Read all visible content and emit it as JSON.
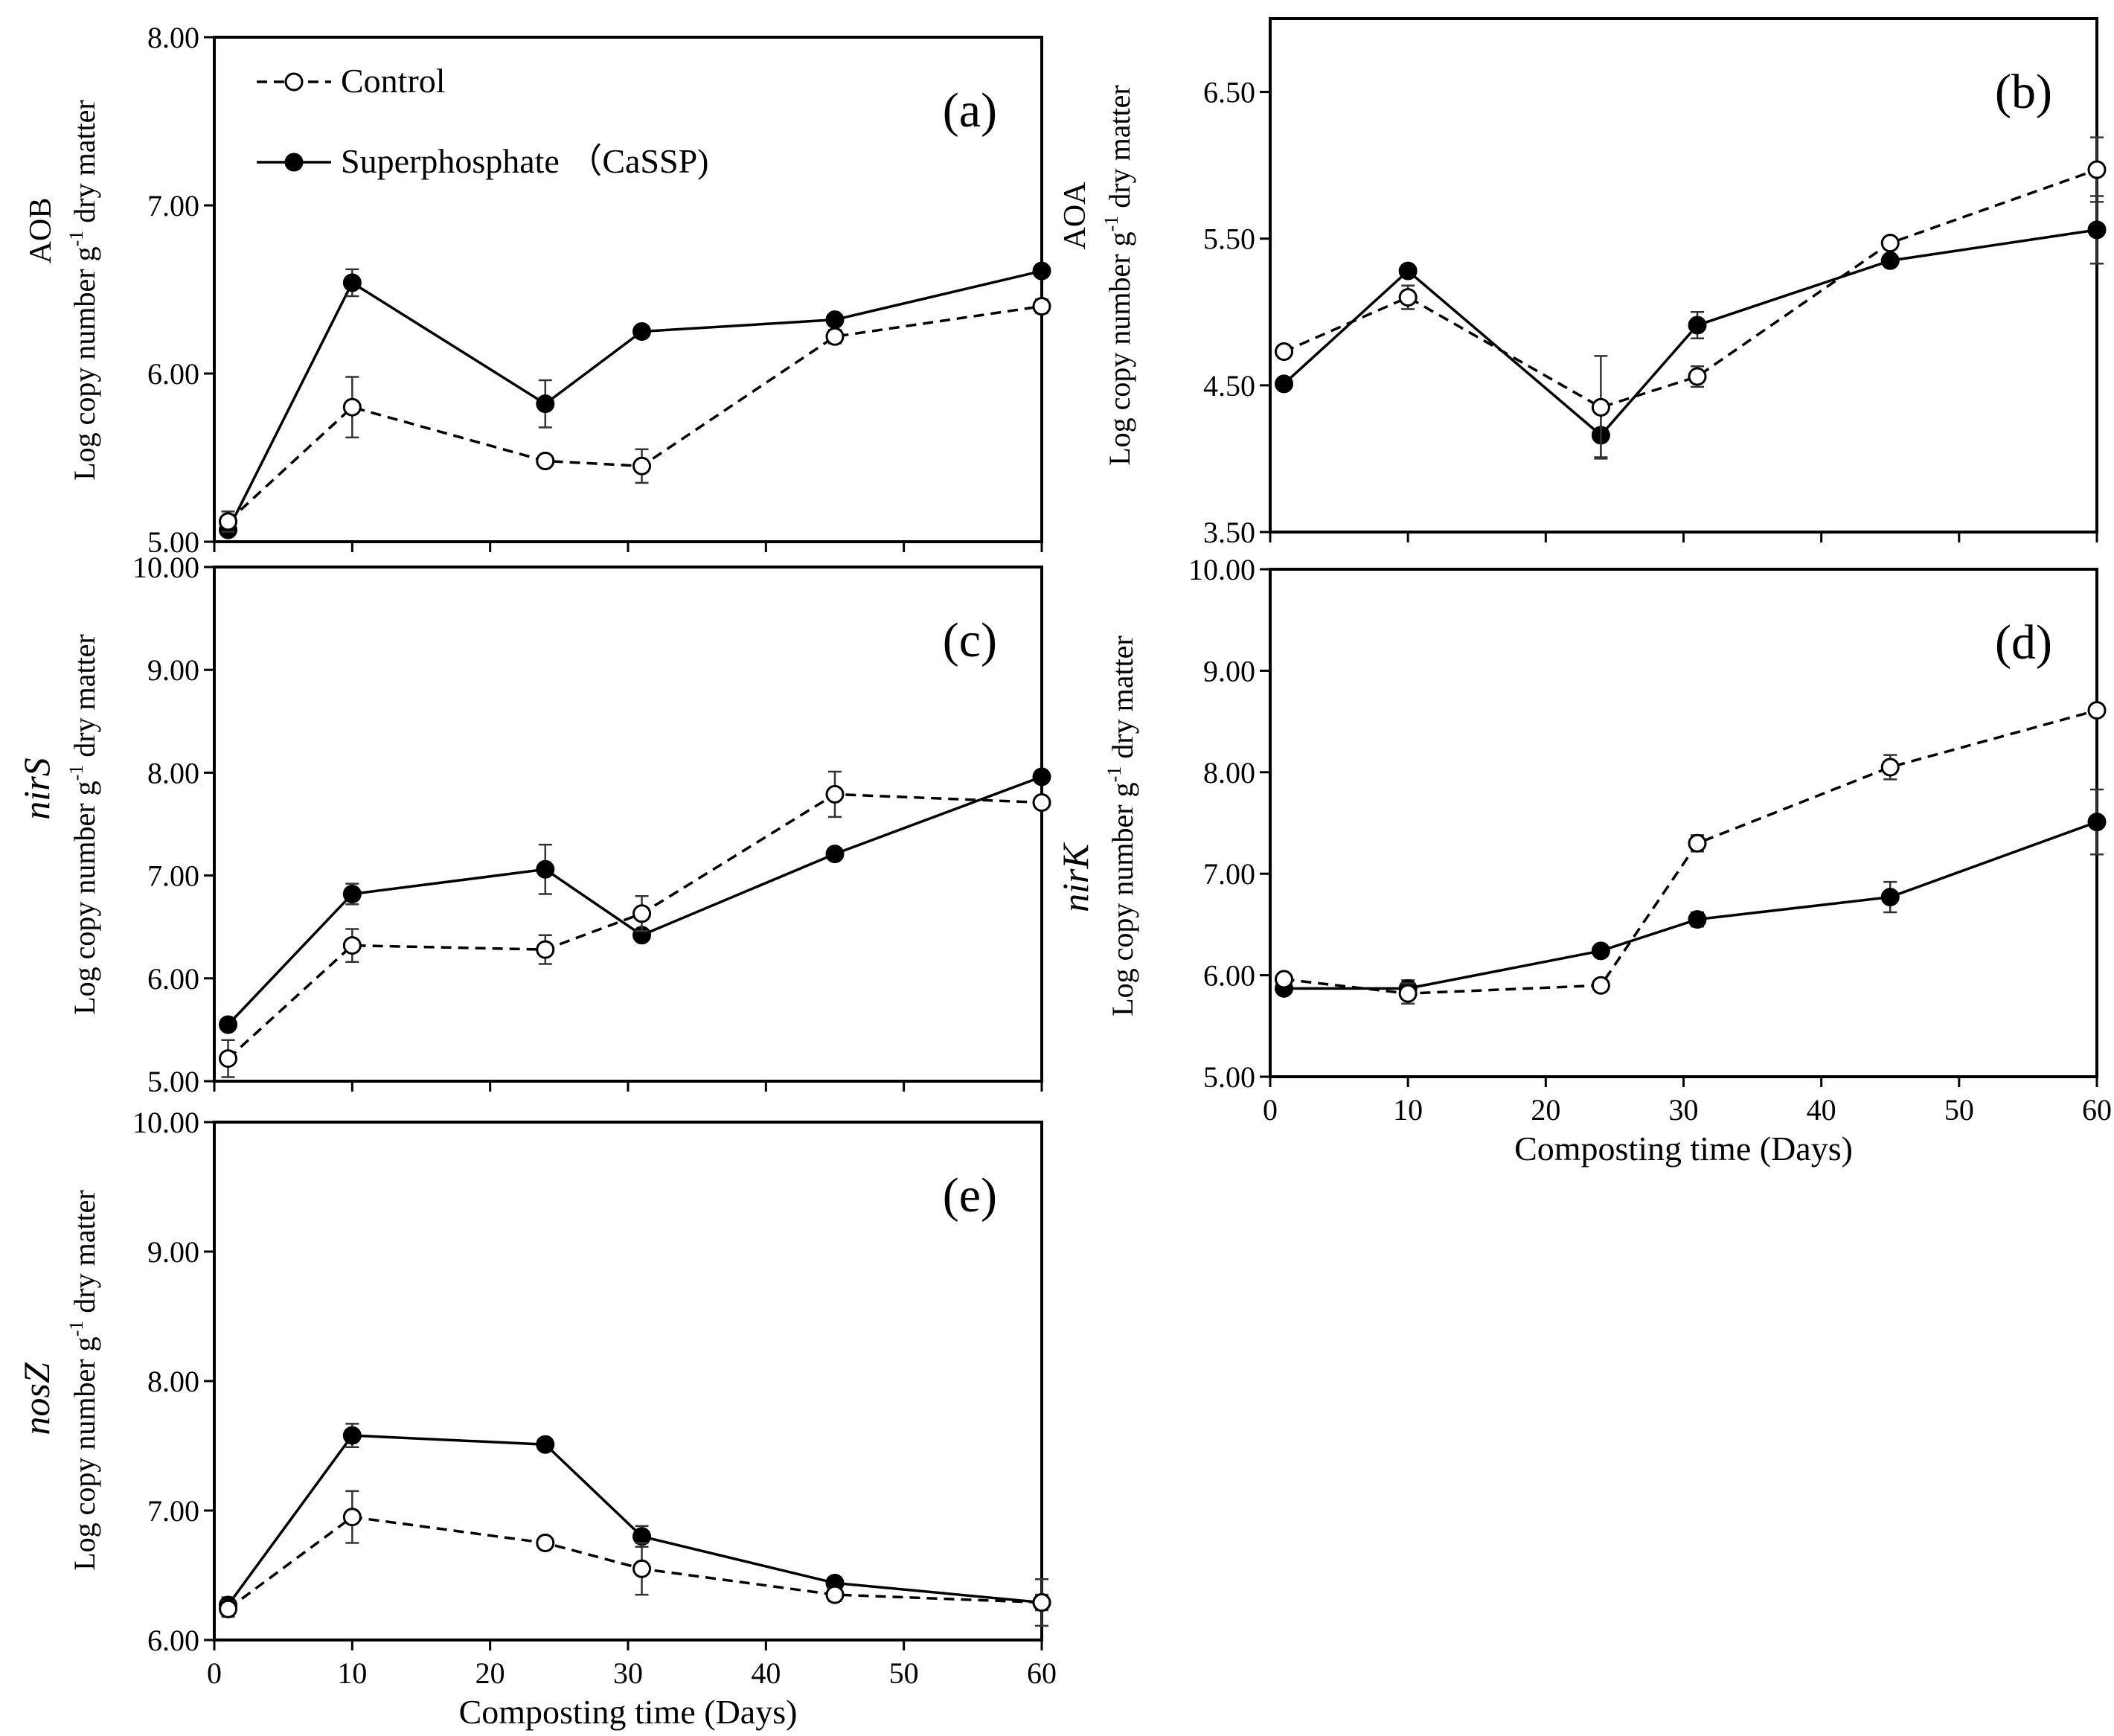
{
  "chart_data": [
    {
      "panel": "(a)",
      "type": "line",
      "ylabel_gene": "AOB",
      "ylabel_italic": false,
      "ylabel_main": "Log copy number g",
      "ylabel_sup": "-1",
      "ylabel_end": " dry matter",
      "xlabel": "",
      "xlim": [
        0,
        60
      ],
      "ylim": [
        5,
        8
      ],
      "yticks": [
        "5.00",
        "6.00",
        "7.00",
        "8.00"
      ],
      "xticks": [],
      "legend": {
        "placement": "top-left",
        "control_label": "Control",
        "treatment_label": "Superphosphate （CaSSP)"
      },
      "x": [
        1,
        10,
        24,
        31,
        45,
        60
      ],
      "series": [
        {
          "name": "Control",
          "style": "dashed-open",
          "values": [
            5.12,
            5.8,
            5.48,
            5.45,
            6.22,
            6.4
          ],
          "errors": [
            0.06,
            0.18,
            0.03,
            0.1,
            0.04,
            0.04
          ]
        },
        {
          "name": "Superphosphate (CaSSP)",
          "style": "solid-filled",
          "values": [
            5.07,
            6.54,
            5.82,
            6.25,
            6.32,
            6.61
          ],
          "errors": [
            0.03,
            0.08,
            0.14,
            0.02,
            0.03,
            0.03
          ]
        }
      ]
    },
    {
      "panel": "(b)",
      "type": "line",
      "ylabel_gene": "AOA",
      "ylabel_italic": false,
      "ylabel_main": "Log copy number g",
      "ylabel_sup": "-1",
      "ylabel_end": " dry matter",
      "xlabel": "",
      "xlim": [
        0,
        60
      ],
      "ylim": [
        3.5,
        7.0
      ],
      "yticks": [
        "3.50",
        "4.50",
        "5.50",
        "6.50"
      ],
      "xticks": [],
      "x": [
        1,
        10,
        24,
        31,
        45,
        60
      ],
      "series": [
        {
          "name": "Control",
          "style": "dashed-open",
          "values": [
            4.73,
            5.1,
            4.35,
            4.56,
            5.47,
            5.97
          ],
          "errors": [
            0.03,
            0.08,
            0.35,
            0.07,
            0.03,
            0.22
          ]
        },
        {
          "name": "Superphosphate (CaSSP)",
          "style": "solid-filled",
          "values": [
            4.51,
            5.28,
            4.16,
            4.91,
            5.35,
            5.56
          ],
          "errors": [
            0.02,
            0.03,
            0.15,
            0.09,
            0.03,
            0.23
          ]
        }
      ]
    },
    {
      "panel": "(c)",
      "type": "line",
      "ylabel_gene": "nirS",
      "ylabel_italic": true,
      "ylabel_main": "Log copy number g",
      "ylabel_sup": "-1",
      "ylabel_end": " dry matter",
      "xlabel": "",
      "xlim": [
        0,
        60
      ],
      "ylim": [
        5,
        10
      ],
      "yticks": [
        "5.00",
        "6.00",
        "7.00",
        "8.00",
        "9.00",
        "10.00"
      ],
      "xticks": [],
      "x": [
        1,
        10,
        24,
        31,
        45,
        60
      ],
      "series": [
        {
          "name": "Control",
          "style": "dashed-open",
          "values": [
            5.22,
            6.32,
            6.28,
            6.63,
            7.79,
            7.71
          ],
          "errors": [
            0.18,
            0.16,
            0.14,
            0.17,
            0.22,
            0.04
          ]
        },
        {
          "name": "Superphosphate (CaSSP)",
          "style": "solid-filled",
          "values": [
            5.55,
            6.82,
            7.06,
            6.42,
            7.21,
            7.96
          ],
          "errors": [
            0.03,
            0.1,
            0.24,
            0.02,
            0.03,
            0.03
          ]
        }
      ]
    },
    {
      "panel": "(d)",
      "type": "line",
      "ylabel_gene": "nirK",
      "ylabel_italic": true,
      "ylabel_main": "Log copy number g",
      "ylabel_sup": "-1",
      "ylabel_end": " dry matter",
      "xlabel": "Composting time (Days)",
      "xlim": [
        0,
        60
      ],
      "ylim": [
        5,
        10
      ],
      "yticks": [
        "5.00",
        "6.00",
        "7.00",
        "8.00",
        "9.00",
        "10.00"
      ],
      "xticks": [
        "0",
        "10",
        "20",
        "30",
        "40",
        "50",
        "60"
      ],
      "x": [
        1,
        10,
        24,
        31,
        45,
        60
      ],
      "series": [
        {
          "name": "Control",
          "style": "dashed-open",
          "values": [
            5.96,
            5.82,
            5.9,
            7.3,
            8.05,
            8.61
          ],
          "errors": [
            0.02,
            0.1,
            0.02,
            0.08,
            0.12,
            0.04
          ]
        },
        {
          "name": "Superphosphate (CaSSP)",
          "style": "solid-filled",
          "values": [
            5.87,
            5.87,
            6.24,
            6.55,
            6.77,
            7.51
          ],
          "errors": [
            0.03,
            0.08,
            0.03,
            0.07,
            0.15,
            0.32
          ]
        }
      ]
    },
    {
      "panel": "(e)",
      "type": "line",
      "ylabel_gene": "nosZ",
      "ylabel_italic": true,
      "ylabel_main": "Log copy number g",
      "ylabel_sup": "-1",
      "ylabel_end": " dry matter",
      "xlabel": "Composting time (Days)",
      "xlim": [
        0,
        60
      ],
      "ylim": [
        6,
        10
      ],
      "yticks": [
        "6.00",
        "7.00",
        "8.00",
        "9.00",
        "10.00"
      ],
      "xticks": [
        "0",
        "10",
        "20",
        "30",
        "40",
        "50",
        "60"
      ],
      "x": [
        1,
        10,
        24,
        31,
        45,
        60
      ],
      "series": [
        {
          "name": "Control",
          "style": "dashed-open",
          "values": [
            6.24,
            6.95,
            6.75,
            6.55,
            6.35,
            6.29
          ],
          "errors": [
            0.06,
            0.2,
            0.02,
            0.2,
            0.05,
            0.18
          ]
        },
        {
          "name": "Superphosphate (CaSSP)",
          "style": "solid-filled",
          "values": [
            6.27,
            7.58,
            7.51,
            6.8,
            6.44,
            6.29
          ],
          "errors": [
            0.06,
            0.09,
            0.02,
            0.08,
            0.02,
            0.06
          ]
        }
      ]
    }
  ]
}
